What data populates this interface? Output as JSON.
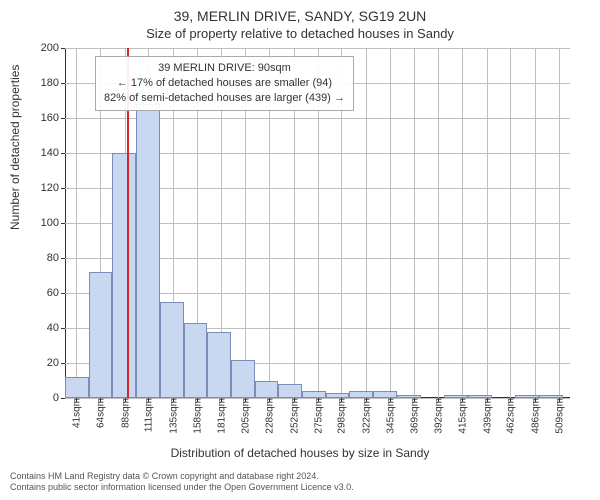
{
  "title1": "39, MERLIN DRIVE, SANDY, SG19 2UN",
  "title2": "Size of property relative to detached houses in Sandy",
  "ylabel": "Number of detached properties",
  "xlabel": "Distribution of detached houses by size in Sandy",
  "chart": {
    "type": "histogram",
    "xmin": 30,
    "xmax": 520,
    "ymin": 0,
    "ymax": 200,
    "yticks": [
      0,
      20,
      40,
      60,
      80,
      100,
      120,
      140,
      160,
      180,
      200
    ],
    "xticks": [
      41,
      64,
      88,
      111,
      135,
      158,
      181,
      205,
      228,
      252,
      275,
      298,
      322,
      345,
      369,
      392,
      415,
      439,
      462,
      486,
      509
    ],
    "xtick_suffix": "sqm",
    "grid_color": "#bfbfbf",
    "bar_fill": "#cad7f0",
    "bar_stroke": "#7a8fb8",
    "background": "#ffffff",
    "refline_x": 90,
    "refline_color": "#d62728",
    "bins": [
      {
        "start": 30,
        "end": 53,
        "count": 12
      },
      {
        "start": 53,
        "end": 76,
        "count": 72
      },
      {
        "start": 76,
        "end": 99,
        "count": 140
      },
      {
        "start": 99,
        "end": 122,
        "count": 168
      },
      {
        "start": 122,
        "end": 145,
        "count": 55
      },
      {
        "start": 145,
        "end": 168,
        "count": 43
      },
      {
        "start": 168,
        "end": 191,
        "count": 38
      },
      {
        "start": 191,
        "end": 214,
        "count": 22
      },
      {
        "start": 214,
        "end": 237,
        "count": 10
      },
      {
        "start": 237,
        "end": 260,
        "count": 8
      },
      {
        "start": 260,
        "end": 283,
        "count": 4
      },
      {
        "start": 283,
        "end": 306,
        "count": 3
      },
      {
        "start": 306,
        "end": 329,
        "count": 4
      },
      {
        "start": 329,
        "end": 352,
        "count": 4
      },
      {
        "start": 352,
        "end": 375,
        "count": 2
      },
      {
        "start": 375,
        "end": 398,
        "count": 0
      },
      {
        "start": 398,
        "end": 421,
        "count": 2
      },
      {
        "start": 421,
        "end": 444,
        "count": 2
      },
      {
        "start": 444,
        "end": 467,
        "count": 0
      },
      {
        "start": 467,
        "end": 490,
        "count": 2
      },
      {
        "start": 490,
        "end": 513,
        "count": 2
      }
    ]
  },
  "annotation": {
    "line1": "39 MERLIN DRIVE: 90sqm",
    "line2": "← 17% of detached houses are smaller (94)",
    "line3": "82% of semi-detached houses are larger (439) →"
  },
  "footer": {
    "line1": "Contains HM Land Registry data © Crown copyright and database right 2024.",
    "line2": "Contains public sector information licensed under the Open Government Licence v3.0."
  }
}
